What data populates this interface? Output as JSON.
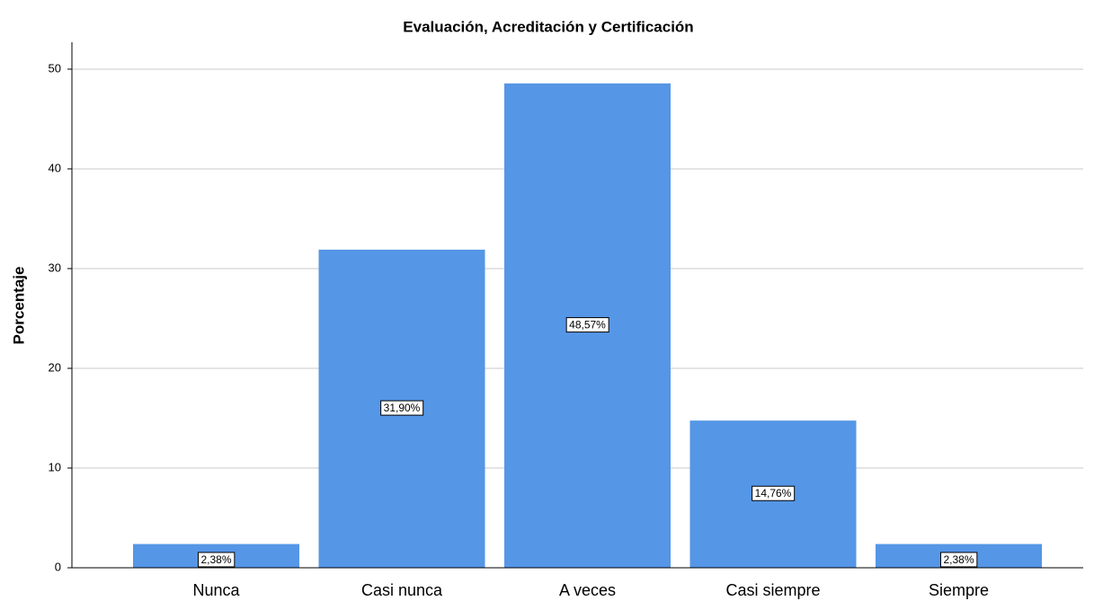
{
  "chart_data": {
    "type": "bar",
    "title": "Evaluación, Acreditación y Certificación",
    "ylabel": "Porcentaje",
    "categories": [
      "Nunca",
      "Casi nunca",
      "A veces",
      "Casi siempre",
      "Siempre"
    ],
    "values": [
      2.38,
      31.9,
      48.57,
      14.76,
      2.38
    ],
    "value_labels": [
      "2,38%",
      "31,90%",
      "48,57%",
      "14,76%",
      "2,38%"
    ],
    "color": "#5596e6",
    "ylim": [
      0,
      52.7
    ],
    "yticks": [
      0,
      10,
      20,
      30,
      40,
      50
    ],
    "grid": true
  }
}
